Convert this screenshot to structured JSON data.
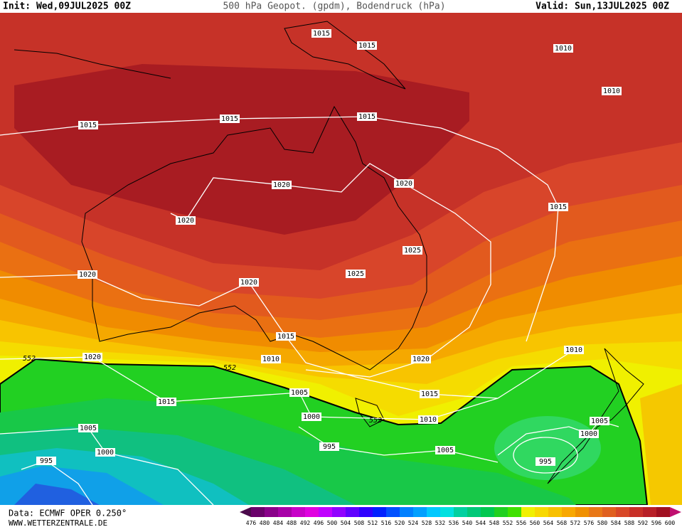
{
  "header": {
    "init": "Init: Wed,09JUL2025 00Z",
    "title": "500 hPa Geopot. (gpdm), Bodendruck (hPa)",
    "valid": "Valid: Sun,13JUL2025 00Z"
  },
  "isobar_labels": [
    1015,
    1015,
    1010,
    1010,
    1015,
    1015,
    1015,
    1020,
    1020,
    1015,
    1020,
    1025,
    1025,
    1020,
    1020,
    1015,
    1010,
    1020,
    1020,
    1010,
    1005,
    1015,
    1015,
    1010,
    1000,
    1005,
    1000,
    995,
    1005,
    1000,
    1005,
    995,
    995
  ],
  "contour_labels": [
    552,
    552,
    552
  ],
  "footer": {
    "source": "Data: ECMWF OPER 0.250°",
    "site": "WWW.WETTERZENTRALE.DE"
  },
  "colorbar": {
    "ticks": [
      476,
      480,
      484,
      488,
      492,
      496,
      500,
      504,
      508,
      512,
      516,
      520,
      524,
      528,
      532,
      536,
      540,
      544,
      548,
      552,
      556,
      560,
      564,
      568,
      572,
      576,
      580,
      584,
      588,
      592,
      596,
      600
    ],
    "colors": [
      "#4b0a4b",
      "#6a006a",
      "#8a008a",
      "#a800a8",
      "#c800c8",
      "#e000e0",
      "#c000ff",
      "#9000ff",
      "#6000ff",
      "#3000ff",
      "#0020ff",
      "#0050ff",
      "#0080ff",
      "#00a0ff",
      "#00c8ff",
      "#00e0e0",
      "#00d0a0",
      "#00c878",
      "#00c850",
      "#20d020",
      "#40e000",
      "#f0f000",
      "#f8d800",
      "#f8c000",
      "#f8a800",
      "#f09000",
      "#e87818",
      "#e06020",
      "#d84828",
      "#c83028",
      "#b82028",
      "#a01020",
      "#c01070"
    ]
  }
}
